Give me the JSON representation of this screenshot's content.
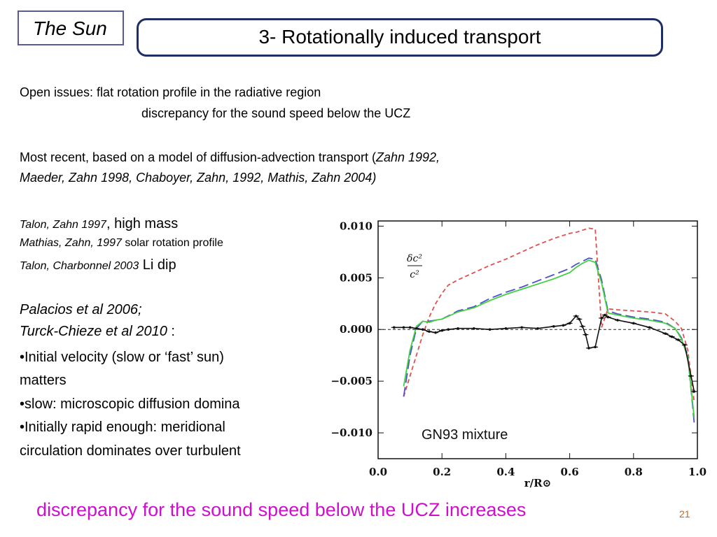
{
  "header": {
    "section_label": "The Sun",
    "title": "3-  Rotationally induced transport"
  },
  "body": {
    "issues_line1": "Open issues: flat rotation profile in the radiative region",
    "issues_line2": "discrepancy for the sound speed below the UCZ",
    "recent_prefix": "Most recent, based  on a model of diffusion-advection transport  (",
    "recent_refs1": "Zahn 1992,",
    "recent_refs2": "Maeder, Zahn 1998, Chaboyer, Zahn, 1992, Mathis, Zahn 2004)",
    "ref1_italic": "Talon, Zahn 1997",
    "ref1_text": ", high mass",
    "ref2_italic": "Mathias, Zahn, 1997",
    "ref2_text": "  solar rotation profile",
    "ref3_italic": "Talon, Charbonnel  2003",
    "ref3_text": "  Li dip",
    "pal": "Palacios et al 2006;",
    "turck_italic": "Turck-Chieze et al 2010",
    "turck_text": " :",
    "b1": "•Initial velocity (slow or ‘fast’ sun)",
    "b1b": "matters",
    "b2": "•slow: microscopic diffusion domina",
    "b3": "•Initially rapid enough: meridional",
    "b3b": "circulation dominates over turbulent"
  },
  "footer": {
    "bottom_text": "discrepancy for the sound speed below the UCZ  increases",
    "page_number": "21"
  },
  "chart_data": {
    "type": "line",
    "xlabel": "r/R⊙",
    "ylabel_num": "δc²",
    "ylabel_den": "c²",
    "annotation": "GN93 mixture",
    "xlim": [
      0.0,
      1.0
    ],
    "ylim": [
      -0.0125,
      0.0105
    ],
    "xticks": [
      0.0,
      0.2,
      0.4,
      0.6,
      0.8,
      1.0
    ],
    "xtick_labels": [
      "0.0",
      "0.2",
      "0.4",
      "0.6",
      "0.8",
      "1.0"
    ],
    "yticks": [
      0.01,
      0.005,
      0.0,
      -0.005,
      -0.01
    ],
    "ytick_labels": [
      "0.010",
      "0.005",
      "0.000",
      "−0.005",
      "−0.010"
    ],
    "series": [
      {
        "color": "#e05050",
        "dash": "6,4",
        "x": [
          0.08,
          0.1,
          0.12,
          0.14,
          0.16,
          0.18,
          0.2,
          0.22,
          0.25,
          0.3,
          0.35,
          0.4,
          0.45,
          0.5,
          0.55,
          0.6,
          0.62,
          0.64,
          0.66,
          0.68,
          0.7,
          0.72,
          0.75,
          0.8,
          0.85,
          0.9,
          0.93,
          0.95,
          0.97,
          0.99
        ],
        "y": [
          -0.0065,
          -0.0045,
          -0.0025,
          -0.0005,
          0.0012,
          0.0025,
          0.0035,
          0.0043,
          0.0048,
          0.0055,
          0.0062,
          0.0068,
          0.0075,
          0.0082,
          0.0088,
          0.0093,
          0.0094,
          0.0096,
          0.0098,
          0.0097,
          0.0002,
          0.002,
          0.0019,
          0.0018,
          0.0017,
          0.0015,
          0.0008,
          0.0001,
          -0.002,
          -0.007
        ]
      },
      {
        "color": "#5050cc",
        "dash": "14,6",
        "x": [
          0.08,
          0.1,
          0.12,
          0.14,
          0.16,
          0.18,
          0.2,
          0.25,
          0.3,
          0.35,
          0.4,
          0.45,
          0.5,
          0.55,
          0.6,
          0.62,
          0.64,
          0.66,
          0.68,
          0.7,
          0.72,
          0.75,
          0.8,
          0.85,
          0.9,
          0.93,
          0.95,
          0.97,
          0.99
        ],
        "y": [
          -0.0065,
          -0.0025,
          0.0001,
          0.0008,
          0.0008,
          0.0009,
          0.001,
          0.0018,
          0.0022,
          0.003,
          0.0036,
          0.0041,
          0.0047,
          0.0053,
          0.0059,
          0.0063,
          0.0066,
          0.0069,
          0.0068,
          0.0048,
          0.0018,
          0.0015,
          0.0012,
          0.001,
          0.0007,
          0.0001,
          -0.0008,
          -0.0025,
          -0.009
        ]
      },
      {
        "color": "#40d040",
        "dash": "",
        "x": [
          0.08,
          0.1,
          0.12,
          0.14,
          0.16,
          0.18,
          0.2,
          0.25,
          0.3,
          0.35,
          0.4,
          0.45,
          0.5,
          0.55,
          0.6,
          0.62,
          0.64,
          0.66,
          0.68,
          0.7,
          0.72,
          0.75,
          0.8,
          0.85,
          0.9,
          0.93,
          0.95,
          0.97,
          0.99
        ],
        "y": [
          -0.0055,
          -0.002,
          0.0003,
          0.0008,
          0.0007,
          0.0009,
          0.001,
          0.0017,
          0.0021,
          0.0028,
          0.0034,
          0.0039,
          0.0044,
          0.0049,
          0.0055,
          0.006,
          0.0064,
          0.0067,
          0.0065,
          0.0045,
          0.0016,
          0.0014,
          0.0011,
          0.0009,
          0.0006,
          0.0001,
          -0.0009,
          -0.0027,
          -0.0085
        ]
      },
      {
        "color": "#111111",
        "dash": "",
        "markers": true,
        "x": [
          0.05,
          0.08,
          0.1,
          0.12,
          0.14,
          0.16,
          0.18,
          0.2,
          0.22,
          0.25,
          0.3,
          0.35,
          0.4,
          0.45,
          0.5,
          0.55,
          0.58,
          0.6,
          0.62,
          0.63,
          0.64,
          0.65,
          0.66,
          0.68,
          0.7,
          0.71,
          0.72,
          0.75,
          0.8,
          0.85,
          0.9,
          0.92,
          0.94,
          0.96,
          0.98,
          0.99
        ],
        "y": [
          0.0002,
          0.0002,
          0.0002,
          0.0001,
          0.0,
          -0.0002,
          -0.0003,
          -0.0001,
          0.0,
          0.0001,
          0.0001,
          0.0,
          0.0001,
          0.0002,
          0.0001,
          0.0003,
          0.0004,
          0.0006,
          0.0013,
          0.001,
          0.0003,
          -0.0005,
          -0.0018,
          -0.0017,
          0.0011,
          0.0014,
          0.0012,
          0.0009,
          0.0006,
          0.0002,
          -0.0004,
          -0.0007,
          -0.001,
          -0.0015,
          -0.0045,
          -0.006
        ]
      }
    ]
  }
}
